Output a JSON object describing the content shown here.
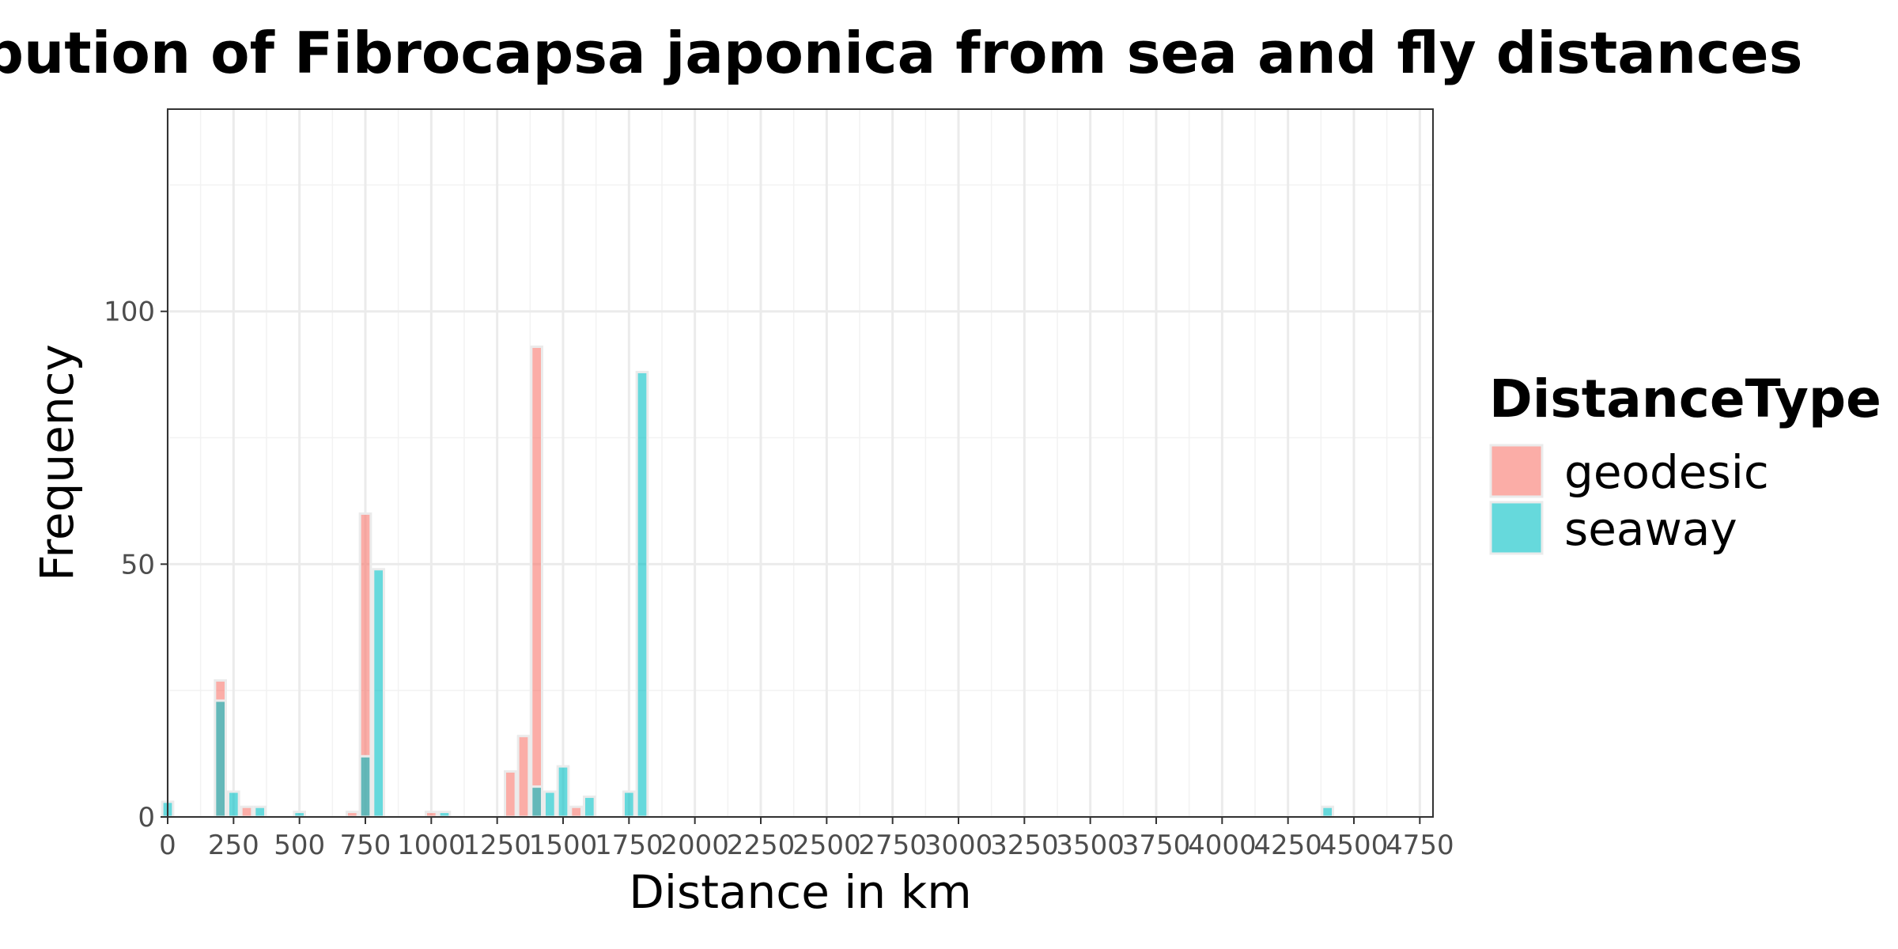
{
  "chart_data": {
    "type": "bar",
    "title": "Distribution of Fibrocapsa japonica from sea and fly distances",
    "xlabel": "Distance in km",
    "ylabel": "Frequency",
    "xlim": [
      0,
      4800
    ],
    "ylim": [
      0,
      140
    ],
    "x_ticks": [
      "0",
      "250",
      "500",
      "750",
      "1000",
      "1250",
      "1500",
      "1750",
      "2000",
      "2250",
      "2500",
      "2750",
      "3000",
      "3250",
      "3500",
      "3750",
      "4000",
      "4250",
      "4500",
      "4750"
    ],
    "y_ticks": [
      "0",
      "50",
      "100"
    ],
    "grid": true,
    "bin_width": 50,
    "legend": {
      "title": "DistanceType",
      "position": "right"
    },
    "series": [
      {
        "name": "geodesic",
        "color": "#F8766D",
        "bins": [
          {
            "x": 200,
            "count": 27
          },
          {
            "x": 300,
            "count": 2
          },
          {
            "x": 700,
            "count": 1
          },
          {
            "x": 750,
            "count": 60
          },
          {
            "x": 1000,
            "count": 1
          },
          {
            "x": 1300,
            "count": 9
          },
          {
            "x": 1350,
            "count": 16
          },
          {
            "x": 1400,
            "count": 93
          },
          {
            "x": 1550,
            "count": 2
          }
        ]
      },
      {
        "name": "seaway",
        "color": "#00BFC4",
        "bins": [
          {
            "x": 0,
            "count": 3
          },
          {
            "x": 200,
            "count": 23
          },
          {
            "x": 250,
            "count": 5
          },
          {
            "x": 350,
            "count": 2
          },
          {
            "x": 500,
            "count": 1
          },
          {
            "x": 750,
            "count": 12
          },
          {
            "x": 800,
            "count": 49
          },
          {
            "x": 1050,
            "count": 1
          },
          {
            "x": 1400,
            "count": 6
          },
          {
            "x": 1450,
            "count": 5
          },
          {
            "x": 1500,
            "count": 10
          },
          {
            "x": 1600,
            "count": 4
          },
          {
            "x": 1750,
            "count": 5
          },
          {
            "x": 1800,
            "count": 88
          },
          {
            "x": 4400,
            "count": 2
          }
        ]
      }
    ]
  }
}
